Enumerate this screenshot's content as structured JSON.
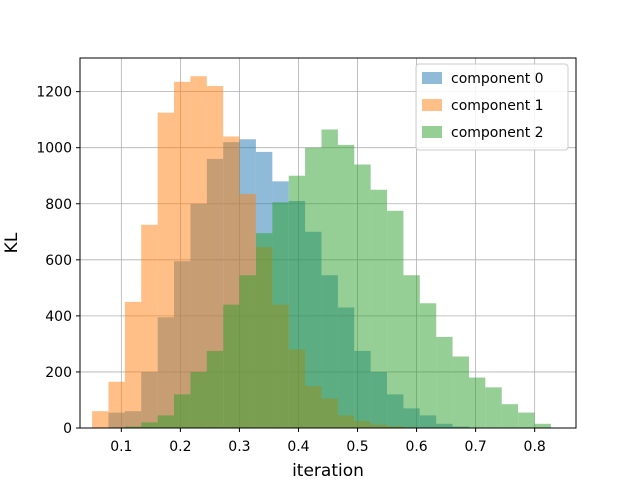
{
  "chart_data": {
    "type": "bar",
    "title": "",
    "xlabel": "iteration",
    "ylabel": "KL",
    "xlim": [
      0.03,
      0.87
    ],
    "ylim": [
      0,
      1320
    ],
    "xticks": [
      0.1,
      0.2,
      0.3,
      0.4,
      0.5,
      0.6,
      0.7,
      0.8
    ],
    "yticks": [
      0,
      200,
      400,
      600,
      800,
      1000,
      1200
    ],
    "grid": true,
    "legend_position": "top-right",
    "bin_width": 0.02775,
    "series": [
      {
        "name": "component 0",
        "color": "#1f77b4",
        "opacity": 0.5,
        "bins": [
          [
            0.0505,
            0
          ],
          [
            0.0782,
            55
          ],
          [
            0.106,
            60
          ],
          [
            0.1337,
            200
          ],
          [
            0.1615,
            395
          ],
          [
            0.1892,
            595
          ],
          [
            0.217,
            800
          ],
          [
            0.2447,
            960
          ],
          [
            0.2725,
            1020
          ],
          [
            0.3002,
            1030
          ],
          [
            0.328,
            985
          ],
          [
            0.3557,
            880
          ],
          [
            0.3835,
            810
          ],
          [
            0.4112,
            700
          ],
          [
            0.439,
            545
          ],
          [
            0.4667,
            430
          ],
          [
            0.4945,
            275
          ],
          [
            0.5222,
            200
          ],
          [
            0.55,
            120
          ],
          [
            0.5777,
            70
          ],
          [
            0.6055,
            45
          ],
          [
            0.6332,
            15
          ],
          [
            0.661,
            5
          ]
        ]
      },
      {
        "name": "component 1",
        "color": "#ff7f0e",
        "opacity": 0.5,
        "bins": [
          [
            0.0505,
            60
          ],
          [
            0.0782,
            165
          ],
          [
            0.106,
            450
          ],
          [
            0.1337,
            725
          ],
          [
            0.1615,
            1125
          ],
          [
            0.1892,
            1235
          ],
          [
            0.217,
            1255
          ],
          [
            0.2447,
            1220
          ],
          [
            0.2725,
            1040
          ],
          [
            0.3002,
            835
          ],
          [
            0.328,
            645
          ],
          [
            0.3557,
            440
          ],
          [
            0.3835,
            280
          ],
          [
            0.4112,
            150
          ],
          [
            0.439,
            105
          ],
          [
            0.4667,
            45
          ],
          [
            0.4945,
            25
          ],
          [
            0.5222,
            12
          ],
          [
            0.55,
            6
          ],
          [
            0.5777,
            2
          ]
        ]
      },
      {
        "name": "component 2",
        "color": "#2ca02c",
        "opacity": 0.5,
        "bins": [
          [
            0.106,
            5
          ],
          [
            0.1337,
            20
          ],
          [
            0.1615,
            45
          ],
          [
            0.1892,
            120
          ],
          [
            0.217,
            200
          ],
          [
            0.2447,
            275
          ],
          [
            0.2725,
            440
          ],
          [
            0.3002,
            545
          ],
          [
            0.328,
            695
          ],
          [
            0.3557,
            805
          ],
          [
            0.3835,
            900
          ],
          [
            0.4112,
            1000
          ],
          [
            0.439,
            1065
          ],
          [
            0.4667,
            1010
          ],
          [
            0.4945,
            940
          ],
          [
            0.5222,
            850
          ],
          [
            0.55,
            775
          ],
          [
            0.5777,
            545
          ],
          [
            0.6055,
            445
          ],
          [
            0.6332,
            325
          ],
          [
            0.661,
            255
          ],
          [
            0.6887,
            180
          ],
          [
            0.7165,
            145
          ],
          [
            0.7442,
            85
          ],
          [
            0.772,
            55
          ],
          [
            0.7997,
            15
          ]
        ]
      }
    ]
  }
}
